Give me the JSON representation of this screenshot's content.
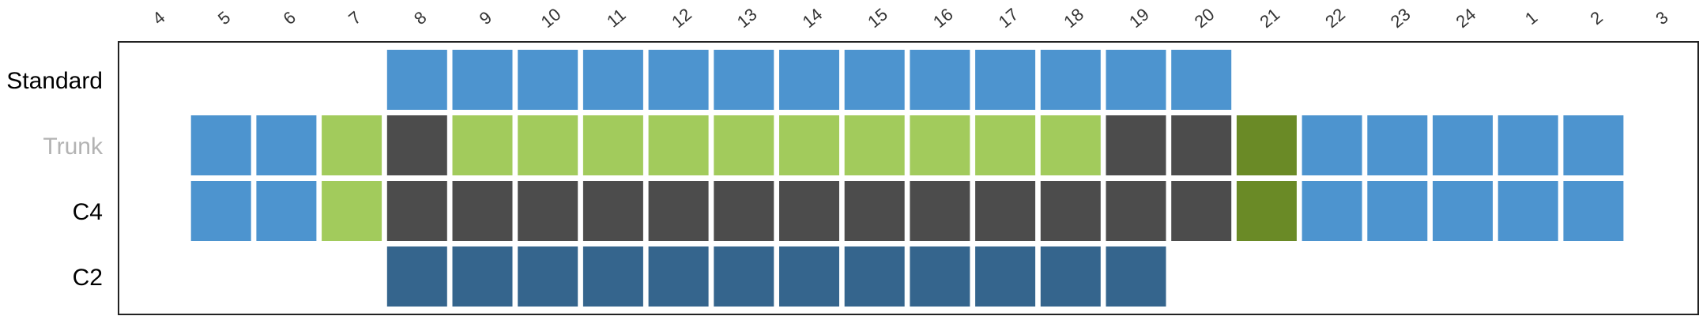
{
  "chart_data": {
    "type": "heatmap",
    "title": "",
    "xlabel": "",
    "ylabel": "",
    "hours": [
      "4",
      "5",
      "6",
      "7",
      "8",
      "9",
      "10",
      "11",
      "12",
      "13",
      "14",
      "15",
      "16",
      "17",
      "18",
      "19",
      "20",
      "21",
      "22",
      "23",
      "24",
      "1",
      "2",
      "3"
    ],
    "rows": [
      {
        "label": "Standard",
        "label_color": "#000000",
        "cells": [
          null,
          null,
          null,
          null,
          "blue",
          "blue",
          "blue",
          "blue",
          "blue",
          "blue",
          "blue",
          "blue",
          "blue",
          "blue",
          "blue",
          "blue",
          "blue",
          null,
          null,
          null,
          null,
          null,
          null,
          null
        ]
      },
      {
        "label": "Trunk",
        "label_color": "#b3b3b3",
        "cells": [
          null,
          "blue",
          "blue",
          "lightgreen",
          "dark",
          "lightgreen",
          "lightgreen",
          "lightgreen",
          "lightgreen",
          "lightgreen",
          "lightgreen",
          "lightgreen",
          "lightgreen",
          "lightgreen",
          "lightgreen",
          "dark",
          "dark",
          "olive",
          "blue",
          "blue",
          "blue",
          "blue",
          "blue",
          null
        ]
      },
      {
        "label": "C4",
        "label_color": "#000000",
        "cells": [
          null,
          "blue",
          "blue",
          "lightgreen",
          "dark",
          "dark",
          "dark",
          "dark",
          "dark",
          "dark",
          "dark",
          "dark",
          "dark",
          "dark",
          "dark",
          "dark",
          "dark",
          "olive",
          "blue",
          "blue",
          "blue",
          "blue",
          "blue",
          null
        ]
      },
      {
        "label": "C2",
        "label_color": "#000000",
        "cells": [
          null,
          null,
          null,
          null,
          "navy",
          "navy",
          "navy",
          "navy",
          "navy",
          "navy",
          "navy",
          "navy",
          "navy",
          "navy",
          "navy",
          "navy",
          null,
          null,
          null,
          null,
          null,
          null,
          null,
          null
        ]
      }
    ],
    "colors": {
      "blue": "#4d94cf",
      "lightgreen": "#a2cb5c",
      "dark": "#4c4c4c",
      "olive": "#6a8a26",
      "navy": "#35658d"
    },
    "grid": false,
    "legend": "none"
  }
}
